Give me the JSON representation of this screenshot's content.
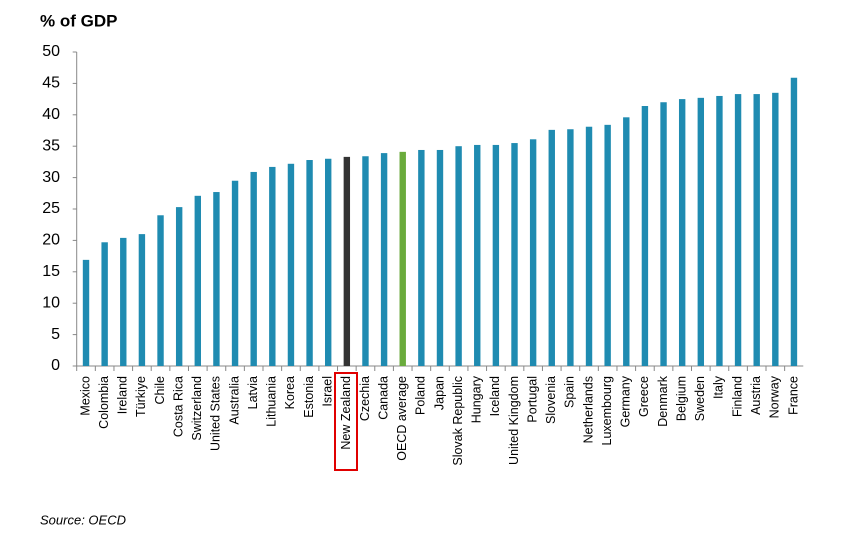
{
  "chart_data": {
    "type": "bar",
    "title": "% of GDP",
    "source": "Source: OECD",
    "categories": [
      "Mexico",
      "Colombia",
      "Ireland",
      "Türkiye",
      "Chile",
      "Costa Rica",
      "Switzerland",
      "United States",
      "Australia",
      "Latvia",
      "Lithuania",
      "Korea",
      "Estonia",
      "Israel",
      "New Zealand",
      "Czechia",
      "Canada",
      "OECD average",
      "Poland",
      "Japan",
      "Slovak Republic",
      "Hungary",
      "Iceland",
      "United Kingdom",
      "Portugal",
      "Slovenia",
      "Spain",
      "Netherlands",
      "Luxembourg",
      "Germany",
      "Greece",
      "Denmark",
      "Belgium",
      "Sweden",
      "Italy",
      "Finland",
      "Austria",
      "Norway",
      "France"
    ],
    "values": [
      16.9,
      19.7,
      20.4,
      21.0,
      24.0,
      25.3,
      27.1,
      27.7,
      29.5,
      30.9,
      31.7,
      32.2,
      32.8,
      33.0,
      33.3,
      33.4,
      33.9,
      34.1,
      34.4,
      34.4,
      35.0,
      35.2,
      35.2,
      35.5,
      36.1,
      37.6,
      37.7,
      38.1,
      38.4,
      39.6,
      41.4,
      42.0,
      42.5,
      42.7,
      43.0,
      43.3,
      43.3,
      43.5,
      45.9
    ],
    "colors": [
      "#1f8bb1",
      "#1f8bb1",
      "#1f8bb1",
      "#1f8bb1",
      "#1f8bb1",
      "#1f8bb1",
      "#1f8bb1",
      "#1f8bb1",
      "#1f8bb1",
      "#1f8bb1",
      "#1f8bb1",
      "#1f8bb1",
      "#1f8bb1",
      "#1f8bb1",
      "#333333",
      "#1f8bb1",
      "#1f8bb1",
      "#6aab3c",
      "#1f8bb1",
      "#1f8bb1",
      "#1f8bb1",
      "#1f8bb1",
      "#1f8bb1",
      "#1f8bb1",
      "#1f8bb1",
      "#1f8bb1",
      "#1f8bb1",
      "#1f8bb1",
      "#1f8bb1",
      "#1f8bb1",
      "#1f8bb1",
      "#1f8bb1",
      "#1f8bb1",
      "#1f8bb1",
      "#1f8bb1",
      "#1f8bb1",
      "#1f8bb1",
      "#1f8bb1",
      "#1f8bb1"
    ],
    "ylim": [
      0,
      50
    ],
    "yticks": [
      0,
      5,
      10,
      15,
      20,
      25,
      30,
      35,
      40,
      45,
      50
    ],
    "grid": false
  }
}
